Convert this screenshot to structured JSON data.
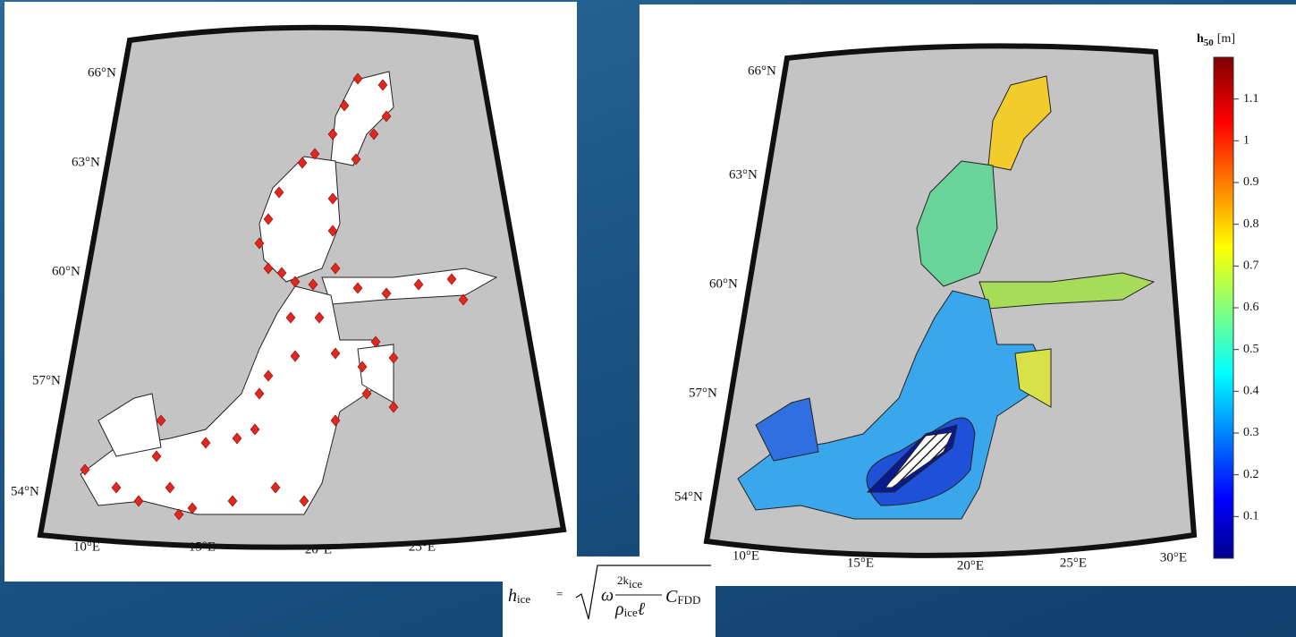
{
  "left_map": {
    "lat_labels": [
      "66°N",
      "63°N",
      "60°N",
      "57°N",
      "54°N"
    ],
    "lon_labels": [
      "10°E",
      "15°E",
      "20°E",
      "25°E"
    ]
  },
  "right_map": {
    "lat_labels": [
      "66°N",
      "63°N",
      "60°N",
      "57°N",
      "54°N"
    ],
    "lon_labels": [
      "10°E",
      "15°E",
      "20°E",
      "25°E",
      "30°E"
    ]
  },
  "colorbar": {
    "title_symbol": "h",
    "title_subscript": "50",
    "title_unit": "[m]",
    "lim": [
      0,
      1.2
    ],
    "ticks": [
      0.1,
      0.2,
      0.3,
      0.4,
      0.5,
      0.6,
      0.7,
      0.8,
      0.9,
      1,
      1.1
    ]
  },
  "formula": {
    "lhs": "h",
    "lhs_sub": "ice",
    "omega": "ω",
    "numerator": "2k",
    "numerator_sub": "ice",
    "rho": "ρ",
    "rho_sub": "ice",
    "ell": "ℓ",
    "factor": "C",
    "factor_sub": "FDD"
  }
}
